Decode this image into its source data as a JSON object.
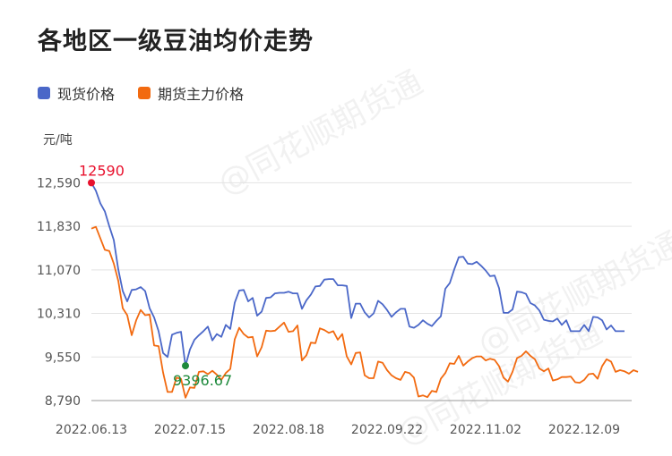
{
  "title": "各地区一级豆油均价走势",
  "watermark": "@同花顺期货通",
  "chart_data": {
    "type": "line",
    "unit": "元/吨",
    "legend_position": "top-left",
    "grid": true,
    "ylim": [
      8790,
      12970
    ],
    "y_ticks": [
      "12,590",
      "11,830",
      "11,070",
      "10,310",
      "9,550",
      "8,790"
    ],
    "y_tick_values": [
      12590,
      11830,
      11070,
      10310,
      9550,
      8790
    ],
    "x_ticks": [
      "2022.06.13",
      "2022.07.15",
      "2022.08.18",
      "2022.09.22",
      "2022.11.02",
      "2022.12.09"
    ],
    "x_tick_index": [
      0,
      22,
      44,
      66,
      88,
      110
    ],
    "series": [
      {
        "name": "现货价格",
        "color": "#4A67C8",
        "values": [
          12590,
          12450,
          12230,
          12090,
          11830,
          11590,
          11080,
          10700,
          10520,
          10720,
          10730,
          10770,
          10700,
          10400,
          10240,
          10000,
          9620,
          9550,
          9940,
          9970,
          9990,
          9397,
          9680,
          9850,
          9930,
          10000,
          10080,
          9840,
          9950,
          9900,
          10110,
          10040,
          10500,
          10710,
          10720,
          10520,
          10580,
          10270,
          10340,
          10580,
          10590,
          10660,
          10670,
          10670,
          10690,
          10660,
          10660,
          10390,
          10540,
          10640,
          10780,
          10790,
          10900,
          10910,
          10910,
          10800,
          10800,
          10790,
          10230,
          10480,
          10480,
          10330,
          10240,
          10310,
          10530,
          10470,
          10370,
          10250,
          10330,
          10390,
          10390,
          10080,
          10060,
          10110,
          10190,
          10130,
          10090,
          10180,
          10260,
          10740,
          10840,
          11080,
          11290,
          11300,
          11180,
          11170,
          11210,
          11140,
          11060,
          10960,
          10970,
          10750,
          10320,
          10320,
          10380,
          10690,
          10680,
          10650,
          10490,
          10450,
          10360,
          10200,
          10180,
          10170,
          10220,
          10110,
          10190,
          10000,
          10000,
          10000,
          10110,
          10000,
          10250,
          10240,
          10190,
          10030,
          10100,
          10000,
          10000,
          10000
        ]
      },
      {
        "name": "期货主力价格",
        "color": "#F26A10",
        "values": [
          11790,
          11820,
          11620,
          11420,
          11400,
          11180,
          10880,
          10400,
          10280,
          9930,
          10190,
          10370,
          10280,
          10290,
          9750,
          9740,
          9280,
          8940,
          8940,
          9190,
          9170,
          8840,
          9020,
          9010,
          9290,
          9300,
          9250,
          9310,
          9240,
          9150,
          9270,
          9340,
          9860,
          10060,
          9950,
          9890,
          9900,
          9560,
          9720,
          10010,
          10000,
          10010,
          10080,
          10150,
          9990,
          10000,
          10100,
          9490,
          9580,
          9800,
          9790,
          10050,
          10020,
          9970,
          10000,
          9850,
          9950,
          9560,
          9420,
          9620,
          9630,
          9230,
          9180,
          9180,
          9470,
          9450,
          9320,
          9230,
          9180,
          9150,
          9290,
          9270,
          9190,
          8860,
          8880,
          8850,
          8960,
          8940,
          9170,
          9270,
          9440,
          9430,
          9570,
          9400,
          9470,
          9530,
          9560,
          9560,
          9490,
          9520,
          9500,
          9390,
          9190,
          9120,
          9290,
          9530,
          9570,
          9650,
          9570,
          9510,
          9350,
          9300,
          9350,
          9140,
          9160,
          9200,
          9200,
          9210,
          9110,
          9100,
          9150,
          9250,
          9260,
          9170,
          9390,
          9510,
          9470,
          9290,
          9320,
          9300,
          9260,
          9320,
          9290
        ]
      }
    ],
    "annotations": [
      {
        "label": "12590",
        "series": 0,
        "index": 0,
        "value": 12590,
        "color": "#E8112D"
      },
      {
        "label": "9396.67",
        "series": 0,
        "index": 21,
        "value": 9396.67,
        "color": "#1E8A3C"
      }
    ]
  }
}
